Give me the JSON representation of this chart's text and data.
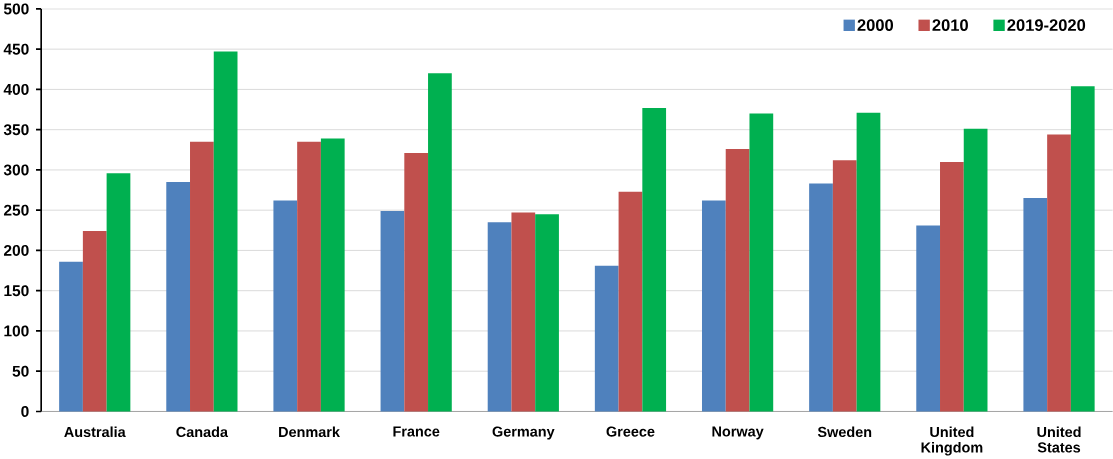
{
  "chart_data": {
    "type": "bar",
    "categories": [
      "Australia",
      "Canada",
      "Denmark",
      "France",
      "Germany",
      "Greece",
      "Norway",
      "Sweden",
      "United Kingdom",
      "United States"
    ],
    "series": [
      {
        "name": "2000",
        "color": "#4f81bd",
        "values": [
          186,
          285,
          262,
          249,
          235,
          181,
          262,
          283,
          231,
          265
        ]
      },
      {
        "name": "2010",
        "color": "#c0504d",
        "values": [
          224,
          335,
          335,
          321,
          247,
          273,
          326,
          312,
          310,
          344
        ]
      },
      {
        "name": "2019-2020",
        "color": "#00b050",
        "values": [
          296,
          447,
          339,
          420,
          245,
          377,
          370,
          371,
          351,
          404
        ]
      }
    ],
    "ylim": [
      0,
      500
    ],
    "yticks": [
      0,
      50,
      100,
      150,
      200,
      250,
      300,
      350,
      400,
      450,
      500
    ],
    "grid": "y",
    "legend": "top right"
  }
}
